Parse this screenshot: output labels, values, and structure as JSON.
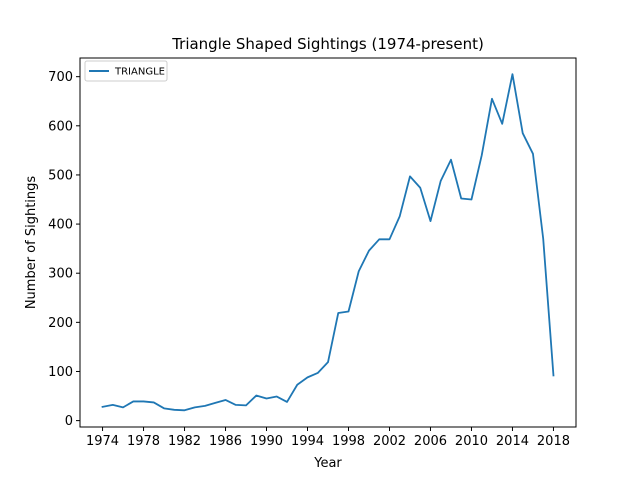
{
  "chart_data": {
    "type": "line",
    "title": "Triangle Shaped Sightings (1974-present)",
    "xlabel": "Year",
    "ylabel": "Number of Sightings",
    "xlim": [
      1971.8,
      2020.2
    ],
    "ylim": [
      -13,
      738
    ],
    "x_ticks": [
      "1974",
      "1978",
      "1982",
      "1986",
      "1990",
      "1994",
      "1998",
      "2002",
      "2006",
      "2010",
      "2014",
      "2018"
    ],
    "y_ticks": [
      "0",
      "100",
      "200",
      "300",
      "400",
      "500",
      "600",
      "700"
    ],
    "legend_position": "upper-left",
    "grid": false,
    "x": [
      1974,
      1975,
      1976,
      1977,
      1978,
      1979,
      1980,
      1981,
      1982,
      1983,
      1984,
      1985,
      1986,
      1987,
      1988,
      1989,
      1990,
      1991,
      1992,
      1993,
      1994,
      1995,
      1996,
      1997,
      1998,
      1999,
      2000,
      2001,
      2002,
      2003,
      2004,
      2005,
      2006,
      2007,
      2008,
      2009,
      2010,
      2011,
      2012,
      2013,
      2014,
      2015,
      2016,
      2017,
      2018
    ],
    "series": [
      {
        "name": "TRIANGLE",
        "color": "#1f77b4",
        "values": [
          28,
          32,
          27,
          39,
          39,
          37,
          25,
          22,
          21,
          27,
          30,
          36,
          42,
          32,
          31,
          51,
          45,
          49,
          38,
          73,
          88,
          97,
          119,
          219,
          222,
          304,
          346,
          369,
          369,
          416,
          497,
          474,
          406,
          488,
          531,
          452,
          450,
          540,
          655,
          604,
          705,
          585,
          543,
          370,
          92
        ]
      }
    ]
  }
}
